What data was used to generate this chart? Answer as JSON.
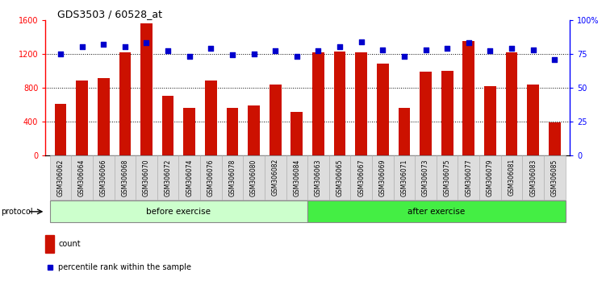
{
  "title": "GDS3503 / 60528_at",
  "categories": [
    "GSM306062",
    "GSM306064",
    "GSM306066",
    "GSM306068",
    "GSM306070",
    "GSM306072",
    "GSM306074",
    "GSM306076",
    "GSM306078",
    "GSM306080",
    "GSM306082",
    "GSM306084",
    "GSM306063",
    "GSM306065",
    "GSM306067",
    "GSM306069",
    "GSM306071",
    "GSM306073",
    "GSM306075",
    "GSM306077",
    "GSM306079",
    "GSM306081",
    "GSM306083",
    "GSM306085"
  ],
  "counts": [
    610,
    880,
    910,
    1220,
    1560,
    700,
    560,
    880,
    560,
    590,
    840,
    510,
    1220,
    1230,
    1220,
    1080,
    560,
    990,
    1000,
    1350,
    820,
    1220,
    840,
    390
  ],
  "percentiles": [
    75,
    80,
    82,
    80,
    83,
    77,
    73,
    79,
    74,
    75,
    77,
    73,
    77,
    80,
    84,
    78,
    73,
    78,
    79,
    83,
    77,
    79,
    78,
    71
  ],
  "n_before": 12,
  "n_after": 12,
  "before_label": "before exercise",
  "after_label": "after exercise",
  "protocol_label": "protocol",
  "count_label": "count",
  "percentile_label": "percentile rank within the sample",
  "bar_color": "#cc1100",
  "dot_color": "#0000cc",
  "before_color": "#ccffcc",
  "after_color": "#44ee44",
  "ylim_left": [
    0,
    1600
  ],
  "ylim_right": [
    0,
    100
  ],
  "yticks_left": [
    0,
    400,
    800,
    1200,
    1600
  ],
  "yticks_right": [
    0,
    25,
    50,
    75,
    100
  ],
  "grid_values": [
    400,
    800,
    1200
  ],
  "bg_color": "#ffffff"
}
